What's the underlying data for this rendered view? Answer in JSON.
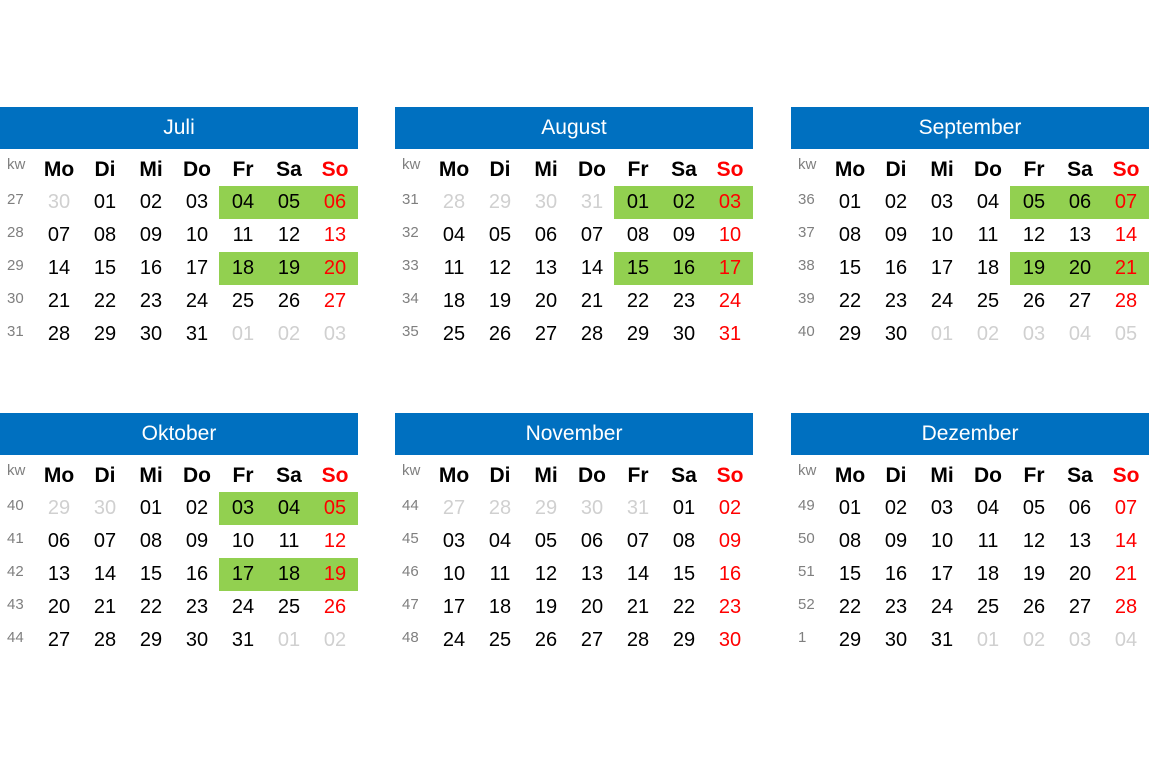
{
  "kw_label": "kw",
  "weekdays": [
    "Mo",
    "Di",
    "Mi",
    "Do",
    "Fr",
    "Sa",
    "So"
  ],
  "colors": {
    "header_bg": "#0070c0",
    "weekend_highlight": "#92d050",
    "sunday": "#ff0000",
    "other_month": "#d0d0d0",
    "week_number": "#7f7f7f"
  },
  "months": [
    {
      "name": "Juli",
      "weeks": [
        {
          "kw": "27",
          "days": [
            "30",
            "01",
            "02",
            "03",
            "04",
            "05",
            "06"
          ],
          "muted": [
            0
          ],
          "highlight": true
        },
        {
          "kw": "28",
          "days": [
            "07",
            "08",
            "09",
            "10",
            "11",
            "12",
            "13"
          ],
          "muted": [],
          "highlight": false
        },
        {
          "kw": "29",
          "days": [
            "14",
            "15",
            "16",
            "17",
            "18",
            "19",
            "20"
          ],
          "muted": [],
          "highlight": true
        },
        {
          "kw": "30",
          "days": [
            "21",
            "22",
            "23",
            "24",
            "25",
            "26",
            "27"
          ],
          "muted": [],
          "highlight": false
        },
        {
          "kw": "31",
          "days": [
            "28",
            "29",
            "30",
            "31",
            "01",
            "02",
            "03"
          ],
          "muted": [
            4,
            5,
            6
          ],
          "highlight": false
        }
      ]
    },
    {
      "name": "August",
      "weeks": [
        {
          "kw": "31",
          "days": [
            "28",
            "29",
            "30",
            "31",
            "01",
            "02",
            "03"
          ],
          "muted": [
            0,
            1,
            2,
            3
          ],
          "highlight": true
        },
        {
          "kw": "32",
          "days": [
            "04",
            "05",
            "06",
            "07",
            "08",
            "09",
            "10"
          ],
          "muted": [],
          "highlight": false
        },
        {
          "kw": "33",
          "days": [
            "11",
            "12",
            "13",
            "14",
            "15",
            "16",
            "17"
          ],
          "muted": [],
          "highlight": true
        },
        {
          "kw": "34",
          "days": [
            "18",
            "19",
            "20",
            "21",
            "22",
            "23",
            "24"
          ],
          "muted": [],
          "highlight": false
        },
        {
          "kw": "35",
          "days": [
            "25",
            "26",
            "27",
            "28",
            "29",
            "30",
            "31"
          ],
          "muted": [],
          "highlight": false
        }
      ]
    },
    {
      "name": "September",
      "weeks": [
        {
          "kw": "36",
          "days": [
            "01",
            "02",
            "03",
            "04",
            "05",
            "06",
            "07"
          ],
          "muted": [],
          "highlight": true
        },
        {
          "kw": "37",
          "days": [
            "08",
            "09",
            "10",
            "11",
            "12",
            "13",
            "14"
          ],
          "muted": [],
          "highlight": false
        },
        {
          "kw": "38",
          "days": [
            "15",
            "16",
            "17",
            "18",
            "19",
            "20",
            "21"
          ],
          "muted": [],
          "highlight": true
        },
        {
          "kw": "39",
          "days": [
            "22",
            "23",
            "24",
            "25",
            "26",
            "27",
            "28"
          ],
          "muted": [],
          "highlight": false
        },
        {
          "kw": "40",
          "days": [
            "29",
            "30",
            "01",
            "02",
            "03",
            "04",
            "05"
          ],
          "muted": [
            2,
            3,
            4,
            5,
            6
          ],
          "highlight": false
        }
      ]
    },
    {
      "name": "Oktober",
      "weeks": [
        {
          "kw": "40",
          "days": [
            "29",
            "30",
            "01",
            "02",
            "03",
            "04",
            "05"
          ],
          "muted": [
            0,
            1
          ],
          "highlight": true
        },
        {
          "kw": "41",
          "days": [
            "06",
            "07",
            "08",
            "09",
            "10",
            "11",
            "12"
          ],
          "muted": [],
          "highlight": false
        },
        {
          "kw": "42",
          "days": [
            "13",
            "14",
            "15",
            "16",
            "17",
            "18",
            "19"
          ],
          "muted": [],
          "highlight": true
        },
        {
          "kw": "43",
          "days": [
            "20",
            "21",
            "22",
            "23",
            "24",
            "25",
            "26"
          ],
          "muted": [],
          "highlight": false
        },
        {
          "kw": "44",
          "days": [
            "27",
            "28",
            "29",
            "30",
            "31",
            "01",
            "02"
          ],
          "muted": [
            5,
            6
          ],
          "highlight": false
        }
      ]
    },
    {
      "name": "November",
      "weeks": [
        {
          "kw": "44",
          "days": [
            "27",
            "28",
            "29",
            "30",
            "31",
            "01",
            "02"
          ],
          "muted": [
            0,
            1,
            2,
            3,
            4
          ],
          "highlight": false
        },
        {
          "kw": "45",
          "days": [
            "03",
            "04",
            "05",
            "06",
            "07",
            "08",
            "09"
          ],
          "muted": [],
          "highlight": false
        },
        {
          "kw": "46",
          "days": [
            "10",
            "11",
            "12",
            "13",
            "14",
            "15",
            "16"
          ],
          "muted": [],
          "highlight": false
        },
        {
          "kw": "47",
          "days": [
            "17",
            "18",
            "19",
            "20",
            "21",
            "22",
            "23"
          ],
          "muted": [],
          "highlight": false
        },
        {
          "kw": "48",
          "days": [
            "24",
            "25",
            "26",
            "27",
            "28",
            "29",
            "30"
          ],
          "muted": [],
          "highlight": false
        }
      ]
    },
    {
      "name": "Dezember",
      "weeks": [
        {
          "kw": "49",
          "days": [
            "01",
            "02",
            "03",
            "04",
            "05",
            "06",
            "07"
          ],
          "muted": [],
          "highlight": false
        },
        {
          "kw": "50",
          "days": [
            "08",
            "09",
            "10",
            "11",
            "12",
            "13",
            "14"
          ],
          "muted": [],
          "highlight": false
        },
        {
          "kw": "51",
          "days": [
            "15",
            "16",
            "17",
            "18",
            "19",
            "20",
            "21"
          ],
          "muted": [],
          "highlight": false
        },
        {
          "kw": "52",
          "days": [
            "22",
            "23",
            "24",
            "25",
            "26",
            "27",
            "28"
          ],
          "muted": [],
          "highlight": false
        },
        {
          "kw": "1",
          "days": [
            "29",
            "30",
            "31",
            "01",
            "02",
            "03",
            "04"
          ],
          "muted": [
            3,
            4,
            5,
            6
          ],
          "highlight": false
        }
      ]
    }
  ]
}
